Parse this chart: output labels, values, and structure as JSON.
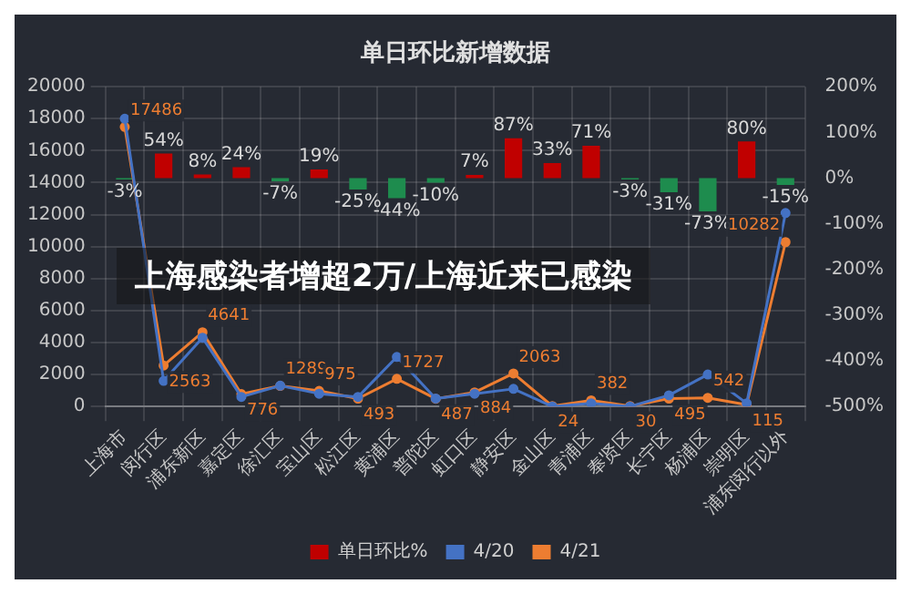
{
  "chart_data": {
    "type": "bar",
    "title": "单日环比新增数据",
    "categories": [
      "上海市",
      "闵行区",
      "浦东新区",
      "嘉定区",
      "徐汇区",
      "宝山区",
      "松江区",
      "黄浦区",
      "普陀区",
      "虹口区",
      "静安区",
      "金山区",
      "青浦区",
      "奉贤区",
      "长宁区",
      "杨浦区",
      "崇明区",
      "浦东闵行以外"
    ],
    "series": [
      {
        "name": "单日环比%",
        "axis": "y2",
        "color": "#c00000",
        "colors": [
          "#1e8c4e",
          "#c00000",
          "#c00000",
          "#c00000",
          "#1e8c4e",
          "#c00000",
          "#1e8c4e",
          "#1e8c4e",
          "#1e8c4e",
          "#c00000",
          "#c00000",
          "#c00000",
          "#c00000",
          "#1e8c4e",
          "#1e8c4e",
          "#1e8c4e",
          "#c00000",
          "#1e8c4e"
        ],
        "values": [
          -3,
          54,
          8,
          24,
          -7,
          19,
          -25,
          -44,
          -10,
          7,
          87,
          33,
          71,
          -3,
          -31,
          -73,
          80,
          -15
        ],
        "value_labels": [
          "-3%",
          "54%",
          "8%",
          "24%",
          "-7%",
          "19%",
          "-25%",
          "-44%",
          "-10%",
          "7%",
          "87%",
          "33%",
          "71%",
          "-3%",
          "-31%",
          "-73%",
          "80%",
          "-15%"
        ]
      },
      {
        "name": "4/20",
        "type": "line",
        "color": "#4472c4",
        "values": [
          18000,
          1600,
          4300,
          600,
          1300,
          800,
          600,
          3100,
          500,
          800,
          1100,
          0,
          200,
          0,
          700,
          2000,
          200,
          12100
        ]
      },
      {
        "name": "4/21",
        "type": "line",
        "color": "#ed7d31",
        "values": [
          17486,
          2563,
          4641,
          776,
          1289,
          975,
          493,
          1727,
          487,
          884,
          2063,
          24,
          382,
          30,
          495,
          542,
          115,
          10282
        ],
        "value_labels": [
          "17486",
          "2563",
          "4641",
          "776",
          "1289",
          "975",
          "493",
          "1727",
          "487",
          "884",
          "2063",
          "24",
          "382",
          "30",
          "495",
          "542",
          "115",
          "10282"
        ]
      }
    ],
    "ylim": [
      0,
      20000
    ],
    "yticks": [
      0,
      2000,
      4000,
      6000,
      8000,
      10000,
      12000,
      14000,
      16000,
      18000,
      20000
    ],
    "y2lim": [
      -500,
      200
    ],
    "y2ticks": [
      {
        "value": -500,
        "label": "-500%"
      },
      {
        "value": -400,
        "label": "-400%"
      },
      {
        "value": -300,
        "label": "-300%"
      },
      {
        "value": -200,
        "label": "-200%"
      },
      {
        "value": -100,
        "label": "-100%"
      },
      {
        "value": 0,
        "label": "0%"
      },
      {
        "value": 100,
        "label": "100%"
      },
      {
        "value": 200,
        "label": "200%"
      }
    ],
    "grid": true,
    "legend": "bottom",
    "marker": "circle",
    "annotations": [
      "上海感染者增超2万/上海近来已感染"
    ]
  }
}
